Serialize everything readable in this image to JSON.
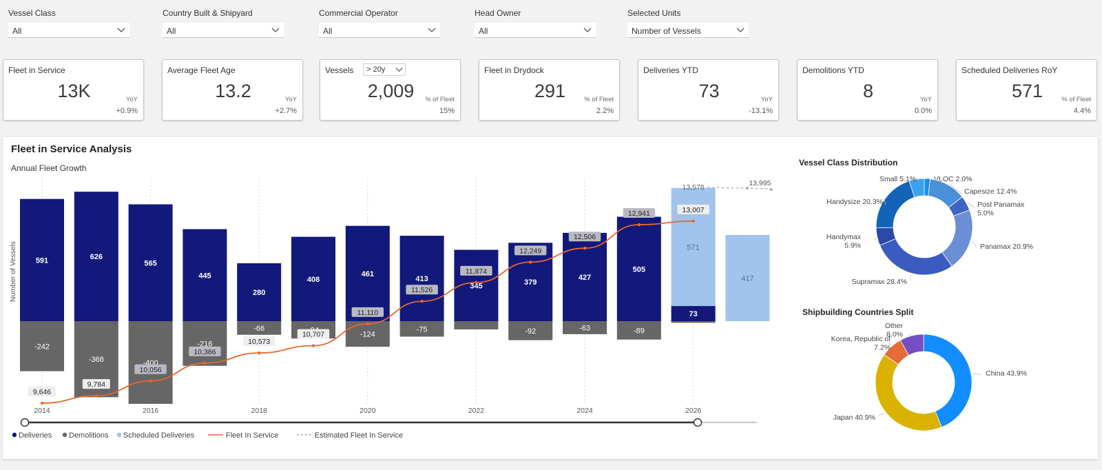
{
  "filters": [
    {
      "label": "Vessel Class",
      "value": "All"
    },
    {
      "label": "Country Built & Shipyard",
      "value": "All"
    },
    {
      "label": "Commercial Operator",
      "value": "All"
    },
    {
      "label": "Head Owner",
      "value": "All"
    },
    {
      "label": "Selected Units",
      "value": "Number of Vessels"
    }
  ],
  "kpis": [
    {
      "title": "Fleet in Service",
      "value": "13K",
      "sub": "YoY",
      "delta": "+0.9%"
    },
    {
      "title": "Average Fleet Age",
      "value": "13.2",
      "sub": "YoY",
      "delta": "+2.7%"
    },
    {
      "title": "Vessels",
      "dropdown": "> 20y",
      "value": "2,009",
      "sub": "% of Fleet",
      "delta": "15%"
    },
    {
      "title": "Fleet in Drydock",
      "value": "291",
      "sub": "% of Fleet",
      "delta": "2.2%"
    },
    {
      "title": "Deliveries YTD",
      "value": "73",
      "sub": "YoY",
      "delta": "-13.1%"
    },
    {
      "title": "Demolitions YTD",
      "value": "8",
      "sub": "YoY",
      "delta": "0.0%"
    },
    {
      "title": "Scheduled Deliveries RoY",
      "value": "571",
      "sub": "% of Fleet",
      "delta": "4.4%"
    }
  ],
  "panel": {
    "title": "Fleet in Service Analysis",
    "subtitle": "Annual Fleet Growth"
  },
  "chart_data": [
    {
      "type": "bar",
      "title": "Annual Fleet Growth",
      "ylabel": "Number of Vessels",
      "x": [
        2014,
        2015,
        2016,
        2017,
        2018,
        2019,
        2020,
        2021,
        2022,
        2023,
        2024,
        2025,
        2026,
        2027
      ],
      "xtick_labels": [
        "2014",
        "2016",
        "2018",
        "2020",
        "2022",
        "2024",
        "2026"
      ],
      "series": [
        {
          "name": "Deliveries",
          "color": "#12197a",
          "values": [
            591,
            626,
            565,
            445,
            280,
            408,
            461,
            413,
            345,
            379,
            427,
            505,
            73,
            null
          ],
          "labels": [
            "591",
            "626",
            "565",
            "445",
            "280",
            "408",
            "461",
            "413",
            "345",
            "379",
            "427",
            "505",
            "73",
            ""
          ]
        },
        {
          "name": "Demolitions",
          "color": "#666666",
          "values": [
            -242,
            -368,
            -400,
            -216,
            -66,
            -84,
            -124,
            -75,
            -40,
            -92,
            -63,
            -89,
            -8,
            null
          ],
          "labels": [
            "-242",
            "-368",
            "-400",
            "-216",
            "-66",
            "-84",
            "-124",
            "-75",
            "",
            "-92",
            "-63",
            "-89",
            "",
            ""
          ]
        },
        {
          "name": "Scheduled Deliveries",
          "color": "#a0c4ec",
          "values": [
            null,
            null,
            null,
            null,
            null,
            null,
            null,
            null,
            null,
            null,
            null,
            null,
            571,
            417
          ],
          "labels": [
            "",
            "",
            "",
            "",
            "",
            "",
            "",
            "",
            "",
            "",
            "",
            "",
            "571",
            "417"
          ]
        },
        {
          "name": "Fleet In Service",
          "color": "#e8672e",
          "values": [
            9646,
            9784,
            10056,
            10386,
            10573,
            10707,
            11110,
            11526,
            11874,
            12249,
            12506,
            12941,
            13007,
            null
          ],
          "labels": [
            "9,646",
            "9,784",
            "10,056",
            "10,386",
            "10,573",
            "10,707",
            "11,110",
            "11,526",
            "11,874",
            "12,249",
            "12,506",
            "12,941",
            "13,007",
            ""
          ]
        },
        {
          "name": "Estimated Fleet In Service",
          "color": "#aaaaaa",
          "values": [
            null,
            null,
            null,
            null,
            null,
            null,
            null,
            null,
            null,
            null,
            null,
            null,
            13578,
            13995
          ],
          "labels": [
            "",
            "",
            "",
            "",
            "",
            "",
            "",
            "",
            "",
            "",
            "",
            "",
            "13,578",
            "13,995"
          ]
        }
      ],
      "legend_position": "bottom-left",
      "grid": "vertical dotted"
    },
    {
      "type": "pie",
      "title": "Vessel Class Distribution",
      "slices": [
        {
          "label": "VLOC",
          "pct": 2.0,
          "text": "VLOC 2.0%",
          "color": "#118dff"
        },
        {
          "label": "Capesize",
          "pct": 12.4,
          "text": "Capesize 12.4%",
          "color": "#4a90d9"
        },
        {
          "label": "Post Panamax",
          "pct": 5.0,
          "text": "Post Panamax\n5.0%",
          "color": "#3e63c4"
        },
        {
          "label": "Panamax",
          "pct": 20.9,
          "text": "Panamax 20.9%",
          "color": "#6b8ed6"
        },
        {
          "label": "Supramax",
          "pct": 28.4,
          "text": "Supramax 28.4%",
          "color": "#3a5cc0"
        },
        {
          "label": "Handymax",
          "pct": 5.9,
          "text": "Handymax\n5.9%",
          "color": "#2a4aa8"
        },
        {
          "label": "Handysize",
          "pct": 20.3,
          "text": "Handysize 20.3%",
          "color": "#1364b8"
        },
        {
          "label": "Small",
          "pct": 5.1,
          "text": "Small 5.1%",
          "color": "#3aa0f0"
        }
      ]
    },
    {
      "type": "pie",
      "title": "Shipbuilding Countries Split",
      "slices": [
        {
          "label": "China",
          "pct": 43.9,
          "text": "China 43.9%",
          "color": "#118dff"
        },
        {
          "label": "Japan",
          "pct": 40.9,
          "text": "Japan 40.9%",
          "color": "#d9b300"
        },
        {
          "label": "Korea, Republic of",
          "pct": 7.2,
          "text": "Korea, Republic of\n7.2%",
          "color": "#e66c37"
        },
        {
          "label": "Other",
          "pct": 8.0,
          "text": "Other\n8.0%",
          "color": "#744ec2"
        }
      ]
    }
  ]
}
